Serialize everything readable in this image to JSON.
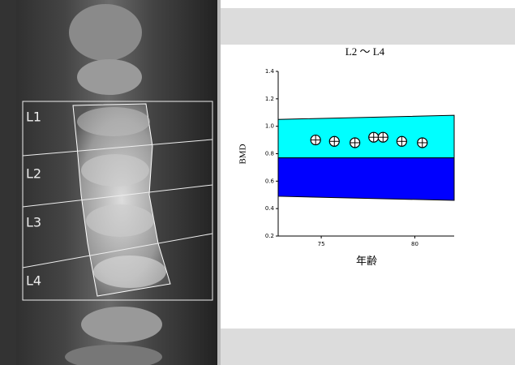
{
  "image_labels": [
    "L1",
    "L2",
    "L3",
    "L4"
  ],
  "chart_data": {
    "type": "scatter",
    "title": "L2 ～ L4",
    "x_label": "年齢",
    "y_label": "BMD",
    "xlim": [
      72.7,
      82.1
    ],
    "xticks": [
      75,
      80
    ],
    "ylim": [
      0.2,
      1.4
    ],
    "yticks": [
      0.2,
      0.4,
      0.6,
      0.8,
      {
        "value": 1,
        "label": "1.0"
      },
      1.2,
      1.4
    ],
    "bands": [
      {
        "color": "#00ffff",
        "upper": [
          1.05,
          1.08
        ],
        "lower": [
          0.77,
          0.77
        ]
      },
      {
        "color": "#0000ff",
        "upper": [
          0.77,
          0.77
        ],
        "lower": [
          0.49,
          0.46
        ]
      }
    ],
    "x": [
      74.7,
      75.7,
      76.8,
      77.8,
      78.3,
      79.3,
      80.4
    ],
    "values": [
      0.9,
      0.89,
      0.88,
      0.92,
      0.92,
      0.89,
      0.88
    ]
  }
}
